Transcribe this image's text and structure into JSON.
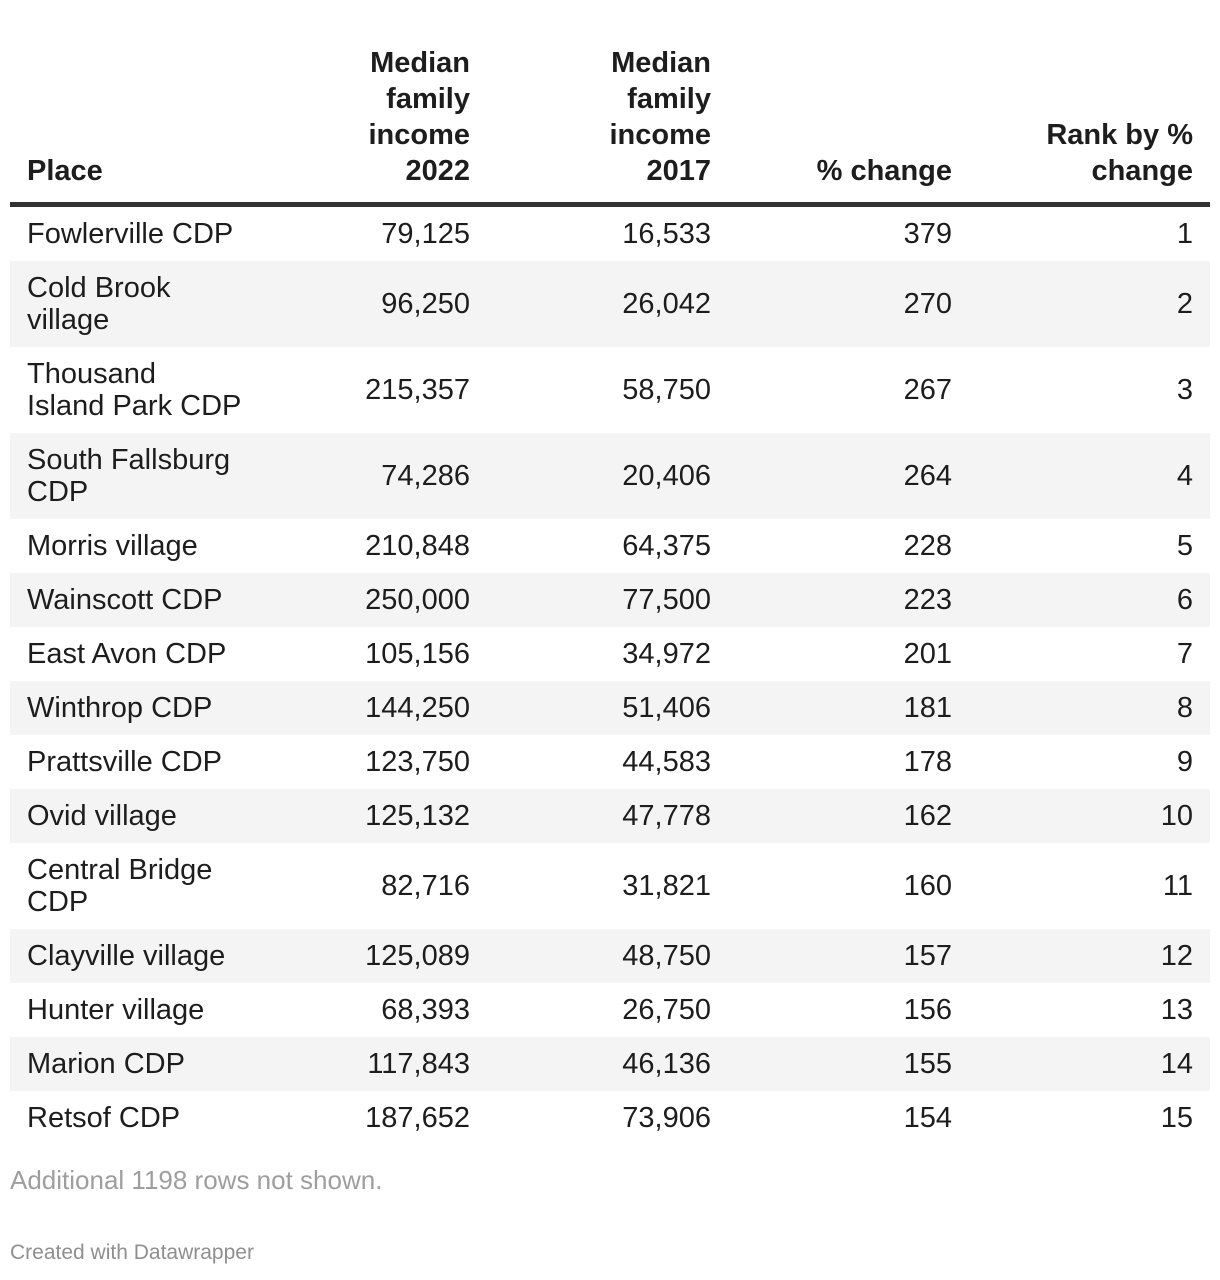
{
  "table": {
    "columns": [
      {
        "label": "Place",
        "align": "left"
      },
      {
        "label": "Median\nfamily\nincome\n2022",
        "align": "right"
      },
      {
        "label": "Median\nfamily\nincome\n2017",
        "align": "right"
      },
      {
        "label": "% change",
        "align": "right"
      },
      {
        "label": "Rank by %\nchange",
        "align": "right"
      }
    ],
    "rows": [
      {
        "place": "Fowlerville CDP",
        "income_2022": "79,125",
        "income_2017": "16,533",
        "pct_change": "379",
        "rank": "1"
      },
      {
        "place": "Cold Brook\nvillage",
        "income_2022": "96,250",
        "income_2017": "26,042",
        "pct_change": "270",
        "rank": "2"
      },
      {
        "place": "Thousand\nIsland Park CDP",
        "income_2022": "215,357",
        "income_2017": "58,750",
        "pct_change": "267",
        "rank": "3"
      },
      {
        "place": "South Fallsburg\nCDP",
        "income_2022": "74,286",
        "income_2017": "20,406",
        "pct_change": "264",
        "rank": "4"
      },
      {
        "place": "Morris village",
        "income_2022": "210,848",
        "income_2017": "64,375",
        "pct_change": "228",
        "rank": "5"
      },
      {
        "place": "Wainscott CDP",
        "income_2022": "250,000",
        "income_2017": "77,500",
        "pct_change": "223",
        "rank": "6"
      },
      {
        "place": "East Avon CDP",
        "income_2022": "105,156",
        "income_2017": "34,972",
        "pct_change": "201",
        "rank": "7"
      },
      {
        "place": "Winthrop CDP",
        "income_2022": "144,250",
        "income_2017": "51,406",
        "pct_change": "181",
        "rank": "8"
      },
      {
        "place": "Prattsville CDP",
        "income_2022": "123,750",
        "income_2017": "44,583",
        "pct_change": "178",
        "rank": "9"
      },
      {
        "place": "Ovid village",
        "income_2022": "125,132",
        "income_2017": "47,778",
        "pct_change": "162",
        "rank": "10"
      },
      {
        "place": "Central Bridge\nCDP",
        "income_2022": "82,716",
        "income_2017": "31,821",
        "pct_change": "160",
        "rank": "11"
      },
      {
        "place": "Clayville village",
        "income_2022": "125,089",
        "income_2017": "48,750",
        "pct_change": "157",
        "rank": "12"
      },
      {
        "place": "Hunter village",
        "income_2022": "68,393",
        "income_2017": "26,750",
        "pct_change": "156",
        "rank": "13"
      },
      {
        "place": "Marion CDP",
        "income_2022": "117,843",
        "income_2017": "46,136",
        "pct_change": "155",
        "rank": "14"
      },
      {
        "place": "Retsof CDP",
        "income_2022": "187,652",
        "income_2017": "73,906",
        "pct_change": "154",
        "rank": "15"
      }
    ]
  },
  "footer": {
    "note": "Additional 1198 rows not shown.",
    "credit": "Created with Datawrapper"
  },
  "colors": {
    "text": "#1d1d1d",
    "stripe": "#f4f4f4",
    "header_border": "#333333",
    "note_text": "#9e9e9e",
    "credit_text": "#8f8f8f"
  },
  "chart_data": {
    "type": "table",
    "title": "",
    "columns": [
      "Place",
      "Median family income 2022",
      "Median family income 2017",
      "% change",
      "Rank by % change"
    ],
    "rows": [
      [
        "Fowlerville CDP",
        79125,
        16533,
        379,
        1
      ],
      [
        "Cold Brook village",
        96250,
        26042,
        270,
        2
      ],
      [
        "Thousand Island Park CDP",
        215357,
        58750,
        267,
        3
      ],
      [
        "South Fallsburg CDP",
        74286,
        20406,
        264,
        4
      ],
      [
        "Morris village",
        210848,
        64375,
        228,
        5
      ],
      [
        "Wainscott CDP",
        250000,
        77500,
        223,
        6
      ],
      [
        "East Avon CDP",
        105156,
        34972,
        201,
        7
      ],
      [
        "Winthrop CDP",
        144250,
        51406,
        181,
        8
      ],
      [
        "Prattsville CDP",
        123750,
        44583,
        178,
        9
      ],
      [
        "Ovid village",
        125132,
        47778,
        162,
        10
      ],
      [
        "Central Bridge CDP",
        82716,
        31821,
        160,
        11
      ],
      [
        "Clayville village",
        125089,
        48750,
        157,
        12
      ],
      [
        "Hunter village",
        68393,
        26750,
        156,
        13
      ],
      [
        "Marion CDP",
        117843,
        46136,
        155,
        14
      ],
      [
        "Retsof CDP",
        187652,
        73906,
        154,
        15
      ]
    ],
    "note": "Additional 1198 rows not shown.",
    "layout": {
      "striped_rows": true,
      "numeric_columns_right_aligned": true,
      "grid": false,
      "legend": "none"
    }
  }
}
